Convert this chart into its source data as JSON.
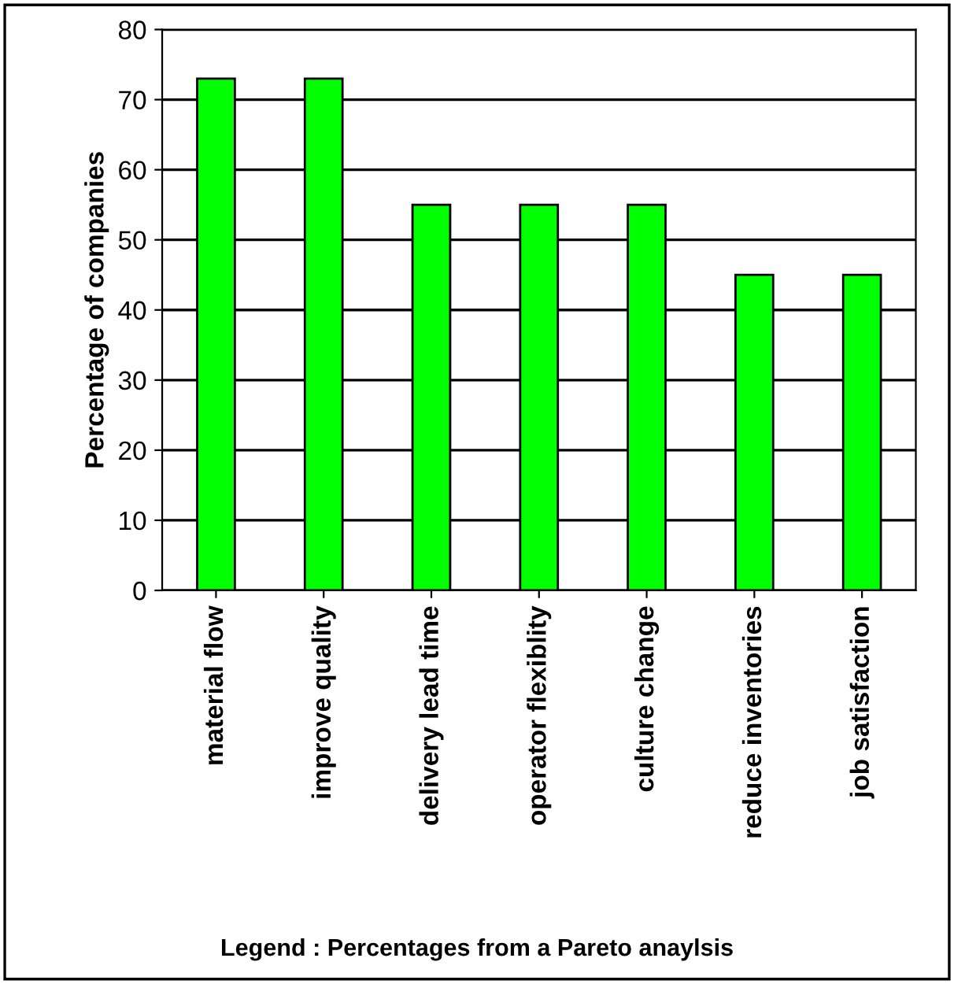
{
  "chart_data": {
    "type": "bar",
    "ylabel": "Percentage of companies",
    "categories": [
      "material flow",
      "improve quality",
      "delivery lead time",
      "operator flexiblity",
      "culture change",
      "reduce inventories",
      "job satisfaction"
    ],
    "values": [
      73,
      73,
      55,
      55,
      55,
      45,
      45
    ],
    "color": "#00ff00",
    "ylim": [
      0,
      80
    ],
    "yticks": [
      0,
      10,
      20,
      30,
      40,
      50,
      60,
      70,
      80
    ],
    "grid": "y",
    "legend": false,
    "annotations": [
      "Legend : Percentages from a Pareto anaylsis"
    ]
  }
}
